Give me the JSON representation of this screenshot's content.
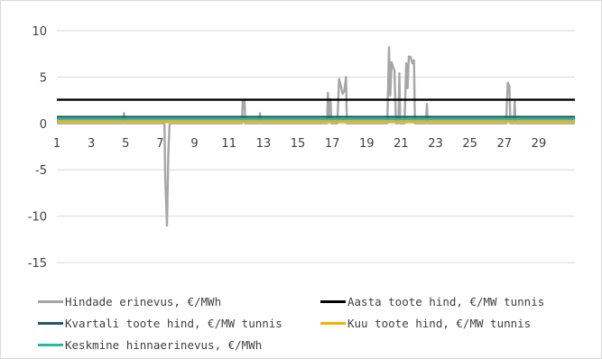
{
  "chart_data": {
    "type": "line",
    "title": "",
    "xlabel": "",
    "ylabel": "",
    "ylim": [
      -15,
      10
    ],
    "y_ticks": [
      "10",
      "5",
      "0",
      "-5",
      "-10",
      "-15"
    ],
    "y_tick_values": [
      10,
      5,
      0,
      -5,
      -10,
      -15
    ],
    "x_ticks": [
      "1",
      "3",
      "5",
      "7",
      "9",
      "11",
      "13",
      "15",
      "17",
      "19",
      "21",
      "23",
      "25",
      "27",
      "29"
    ],
    "x_tick_values": [
      1,
      3,
      5,
      7,
      9,
      11,
      13,
      15,
      17,
      19,
      21,
      23,
      25,
      27,
      29
    ],
    "xlim": [
      1,
      31.1
    ],
    "grid": "horizontal",
    "legend_position": "bottom",
    "series": [
      {
        "name": "Hindade erinevus, €/MWh",
        "color": "#a6a6a6",
        "points": [
          [
            1,
            0.0
          ],
          [
            4.85,
            0.0
          ],
          [
            4.9,
            1.1
          ],
          [
            4.95,
            0.0
          ],
          [
            7.25,
            0.0
          ],
          [
            7.3,
            -6.0
          ],
          [
            7.4,
            -11.0
          ],
          [
            7.48,
            -3.0
          ],
          [
            7.55,
            0.0
          ],
          [
            11.75,
            0.0
          ],
          [
            11.8,
            2.4
          ],
          [
            11.9,
            2.5
          ],
          [
            11.95,
            0.0
          ],
          [
            12.75,
            0.0
          ],
          [
            12.8,
            1.1
          ],
          [
            12.85,
            0.0
          ],
          [
            16.7,
            0.0
          ],
          [
            16.75,
            3.3
          ],
          [
            16.82,
            0.5
          ],
          [
            16.9,
            2.6
          ],
          [
            16.95,
            0.0
          ],
          [
            17.3,
            0.0
          ],
          [
            17.4,
            4.8
          ],
          [
            17.5,
            4.0
          ],
          [
            17.6,
            3.2
          ],
          [
            17.7,
            3.5
          ],
          [
            17.8,
            5.0
          ],
          [
            17.85,
            0.0
          ],
          [
            20.2,
            0.0
          ],
          [
            20.3,
            8.2
          ],
          [
            20.37,
            3.0
          ],
          [
            20.45,
            6.6
          ],
          [
            20.55,
            6.0
          ],
          [
            20.62,
            5.7
          ],
          [
            20.7,
            0.0
          ],
          [
            20.85,
            0.0
          ],
          [
            20.9,
            5.4
          ],
          [
            20.95,
            0.0
          ],
          [
            21.2,
            0.0
          ],
          [
            21.3,
            6.5
          ],
          [
            21.38,
            3.8
          ],
          [
            21.45,
            7.2
          ],
          [
            21.55,
            7.2
          ],
          [
            21.65,
            6.5
          ],
          [
            21.75,
            6.8
          ],
          [
            21.8,
            0.0
          ],
          [
            22.45,
            0.0
          ],
          [
            22.5,
            2.1
          ],
          [
            22.55,
            0.0
          ],
          [
            27.1,
            0.0
          ],
          [
            27.2,
            4.4
          ],
          [
            27.3,
            4.0
          ],
          [
            27.35,
            0.0
          ],
          [
            27.55,
            0.0
          ],
          [
            27.6,
            2.4
          ],
          [
            27.65,
            0.0
          ],
          [
            31.1,
            0.0
          ]
        ]
      },
      {
        "name": "Aasta toote hind, €/MW tunnis",
        "color": "#000000",
        "values_constant": 2.55
      },
      {
        "name": "Kvartali toote hind, €/MW tunnis",
        "color": "#1f5c64",
        "values_constant": 0.7
      },
      {
        "name": "Kuu toote hind, €/MW tunnis",
        "color": "#f2b300",
        "values_constant": 0.2
      },
      {
        "name": "Keskmine hinnaerinevus, €/MWh",
        "color": "#2ab8a8",
        "values_constant": 0.45
      }
    ]
  }
}
